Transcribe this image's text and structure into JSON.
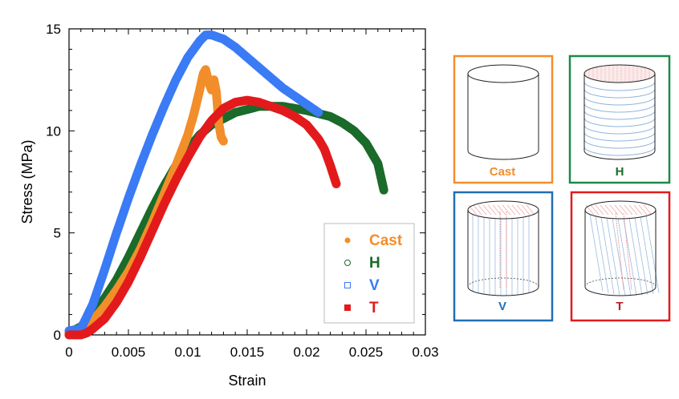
{
  "chart_data": {
    "type": "scatter",
    "title": "",
    "xlabel": "Strain",
    "ylabel": "Stress (MPa)",
    "xlim": [
      0,
      0.03
    ],
    "ylim": [
      0,
      15
    ],
    "x_ticks": [
      "0",
      "0.005",
      "0.01",
      "0.015",
      "0.02",
      "0.025",
      "0.03"
    ],
    "y_ticks": [
      "0",
      "5",
      "10",
      "15"
    ],
    "grid": false,
    "legend_position": "bottom-right",
    "series": [
      {
        "name": "Cast",
        "color": "#F28E2B",
        "marker": "filled-circle",
        "points": [
          [
            0,
            0.1
          ],
          [
            0.001,
            0.2
          ],
          [
            0.002,
            0.7
          ],
          [
            0.003,
            1.4
          ],
          [
            0.004,
            2.2
          ],
          [
            0.005,
            3.1
          ],
          [
            0.006,
            4.2
          ],
          [
            0.007,
            5.5
          ],
          [
            0.008,
            6.9
          ],
          [
            0.009,
            8.3
          ],
          [
            0.01,
            9.8
          ],
          [
            0.0105,
            10.8
          ],
          [
            0.011,
            12.0
          ],
          [
            0.0113,
            12.8
          ],
          [
            0.0115,
            13.0
          ],
          [
            0.0118,
            12.3
          ],
          [
            0.012,
            12.0
          ],
          [
            0.0122,
            12.5
          ],
          [
            0.0124,
            11.9
          ],
          [
            0.0126,
            10.4
          ],
          [
            0.0128,
            9.7
          ],
          [
            0.013,
            9.5
          ]
        ]
      },
      {
        "name": "H",
        "color": "#1B6B2A",
        "marker": "open-circle",
        "points": [
          [
            0,
            0.1
          ],
          [
            0.001,
            0.4
          ],
          [
            0.002,
            1.0
          ],
          [
            0.003,
            1.8
          ],
          [
            0.004,
            2.7
          ],
          [
            0.005,
            3.8
          ],
          [
            0.006,
            5.0
          ],
          [
            0.007,
            6.2
          ],
          [
            0.008,
            7.3
          ],
          [
            0.009,
            8.3
          ],
          [
            0.01,
            9.1
          ],
          [
            0.011,
            9.8
          ],
          [
            0.012,
            10.3
          ],
          [
            0.014,
            10.9
          ],
          [
            0.016,
            11.2
          ],
          [
            0.018,
            11.2
          ],
          [
            0.02,
            11.0
          ],
          [
            0.022,
            10.7
          ],
          [
            0.023,
            10.4
          ],
          [
            0.024,
            10.0
          ],
          [
            0.025,
            9.4
          ],
          [
            0.026,
            8.4
          ],
          [
            0.0265,
            7.1
          ]
        ]
      },
      {
        "name": "V",
        "color": "#3B7BF5",
        "marker": "open-square",
        "points": [
          [
            0,
            0.2
          ],
          [
            0.001,
            0.3
          ],
          [
            0.002,
            1.5
          ],
          [
            0.003,
            3.2
          ],
          [
            0.004,
            5.0
          ],
          [
            0.005,
            6.7
          ],
          [
            0.006,
            8.3
          ],
          [
            0.007,
            9.8
          ],
          [
            0.008,
            11.2
          ],
          [
            0.009,
            12.5
          ],
          [
            0.01,
            13.6
          ],
          [
            0.011,
            14.4
          ],
          [
            0.0115,
            14.7
          ],
          [
            0.012,
            14.7
          ],
          [
            0.013,
            14.5
          ],
          [
            0.014,
            14.1
          ],
          [
            0.015,
            13.6
          ],
          [
            0.016,
            13.1
          ],
          [
            0.017,
            12.6
          ],
          [
            0.018,
            12.1
          ],
          [
            0.019,
            11.7
          ],
          [
            0.02,
            11.3
          ],
          [
            0.021,
            10.9
          ]
        ]
      },
      {
        "name": "T",
        "color": "#E31A1C",
        "marker": "filled-square",
        "points": [
          [
            0,
            0.0
          ],
          [
            0.001,
            0.0
          ],
          [
            0.0015,
            0.1
          ],
          [
            0.002,
            0.3
          ],
          [
            0.003,
            0.8
          ],
          [
            0.004,
            1.6
          ],
          [
            0.005,
            2.6
          ],
          [
            0.006,
            3.8
          ],
          [
            0.007,
            5.1
          ],
          [
            0.008,
            6.4
          ],
          [
            0.009,
            7.6
          ],
          [
            0.01,
            8.7
          ],
          [
            0.011,
            9.7
          ],
          [
            0.012,
            10.5
          ],
          [
            0.013,
            11.1
          ],
          [
            0.014,
            11.4
          ],
          [
            0.015,
            11.5
          ],
          [
            0.016,
            11.4
          ],
          [
            0.017,
            11.2
          ],
          [
            0.018,
            11.0
          ],
          [
            0.019,
            10.7
          ],
          [
            0.02,
            10.3
          ],
          [
            0.021,
            9.6
          ],
          [
            0.0215,
            9.1
          ],
          [
            0.022,
            8.3
          ],
          [
            0.0225,
            7.4
          ]
        ]
      }
    ]
  },
  "specimen_panels": [
    {
      "label": "Cast",
      "border_color": "#F28E2B",
      "label_color": "#F28E2B",
      "hatch": "none"
    },
    {
      "label": "H",
      "border_color": "#1B8A4A",
      "label_color": "#1B6B2A",
      "hatch": "horizontal"
    },
    {
      "label": "V",
      "border_color": "#1F6FB4",
      "label_color": "#1F6FB4",
      "hatch": "vertical"
    },
    {
      "label": "T",
      "border_color": "#E31A1C",
      "label_color": "#B22222",
      "hatch": "transverse"
    }
  ]
}
